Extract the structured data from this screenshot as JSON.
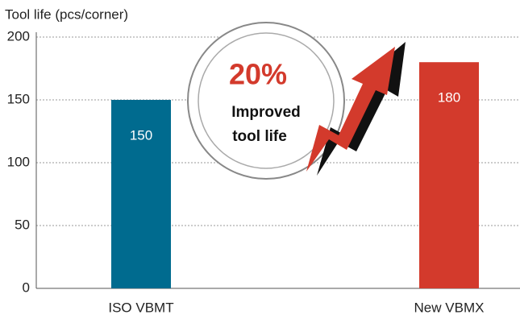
{
  "chart_data": {
    "type": "bar",
    "y_label": "Tool life (pcs/corner)",
    "categories": [
      "ISO VBMT",
      "New VBMX"
    ],
    "values": [
      150,
      180
    ],
    "colors": [
      "#006b8f",
      "#d33a2c"
    ],
    "ylim": [
      0,
      200
    ],
    "yticks": [
      0,
      50,
      100,
      150,
      200
    ],
    "grid": true,
    "annotations": [
      "20%",
      "Improved",
      "tool life"
    ]
  }
}
